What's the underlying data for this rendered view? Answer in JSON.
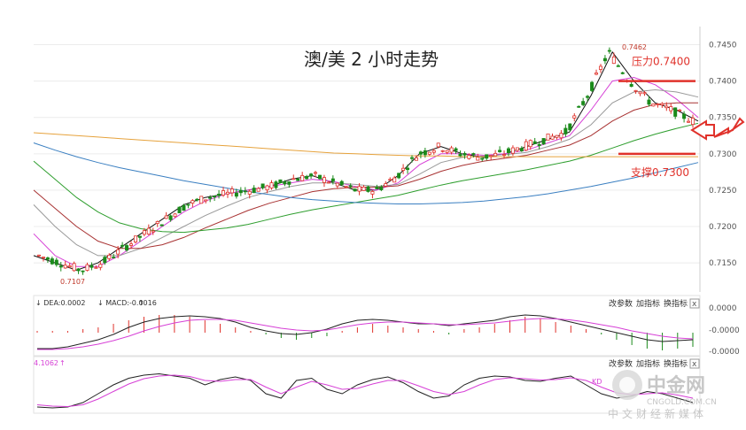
{
  "chart_data": {
    "type": "candlestick",
    "title": "澳/美 2 小时走势",
    "y_axis": {
      "range": [
        0.711,
        0.7475
      ],
      "ticks": [
        "0.7450",
        "0.7400",
        "0.7350",
        "0.7300",
        "0.7250",
        "0.7200",
        "0.7150"
      ]
    },
    "annotations": {
      "high_label": "0.7462",
      "low_label": "0.7107",
      "resistance_label": "压力0.7400",
      "support_label": "支撑0.7300",
      "resistance": 0.74,
      "support": 0.73
    },
    "ma_series": [
      {
        "color": "#111111",
        "values": [
          0.716,
          0.715,
          0.714,
          0.715,
          0.717,
          0.719,
          0.721,
          0.723,
          0.724,
          0.7245,
          0.725,
          0.7255,
          0.7265,
          0.727,
          0.726,
          0.725,
          0.725,
          0.727,
          0.73,
          0.731,
          0.73,
          0.7295,
          0.73,
          0.731,
          0.732,
          0.733,
          0.738,
          0.744,
          0.74,
          0.737,
          0.736,
          0.7345
        ]
      },
      {
        "color": "#d63fd6",
        "values": [
          0.719,
          0.716,
          0.7145,
          0.7145,
          0.716,
          0.718,
          0.72,
          0.722,
          0.7235,
          0.7245,
          0.725,
          0.7255,
          0.726,
          0.7265,
          0.7262,
          0.7255,
          0.725,
          0.726,
          0.7285,
          0.73,
          0.73,
          0.7298,
          0.73,
          0.7305,
          0.7315,
          0.7325,
          0.736,
          0.74,
          0.7405,
          0.7395,
          0.7375,
          0.735
        ]
      },
      {
        "color": "#999999",
        "values": [
          0.723,
          0.72,
          0.7175,
          0.716,
          0.716,
          0.717,
          0.7185,
          0.72,
          0.7215,
          0.7228,
          0.724,
          0.7248,
          0.7255,
          0.726,
          0.726,
          0.7258,
          0.7255,
          0.7258,
          0.7272,
          0.7288,
          0.7295,
          0.7297,
          0.7299,
          0.7302,
          0.731,
          0.732,
          0.734,
          0.737,
          0.7385,
          0.7388,
          0.7385,
          0.7378
        ]
      },
      {
        "color": "#a83232",
        "values": [
          0.725,
          0.7225,
          0.72,
          0.718,
          0.717,
          0.717,
          0.7175,
          0.7185,
          0.7198,
          0.721,
          0.7222,
          0.7232,
          0.724,
          0.7248,
          0.7252,
          0.7254,
          0.7254,
          0.7256,
          0.7265,
          0.7276,
          0.7284,
          0.729,
          0.7294,
          0.7298,
          0.7305,
          0.7312,
          0.7325,
          0.7345,
          0.736,
          0.7368,
          0.737,
          0.737
        ]
      },
      {
        "color": "#2e9e2e",
        "values": [
          0.729,
          0.7265,
          0.724,
          0.722,
          0.7205,
          0.7197,
          0.7193,
          0.7192,
          0.7195,
          0.7198,
          0.7203,
          0.721,
          0.7217,
          0.7223,
          0.7228,
          0.7233,
          0.7238,
          0.7243,
          0.725,
          0.7257,
          0.7263,
          0.7268,
          0.7273,
          0.7278,
          0.7284,
          0.729,
          0.7298,
          0.7308,
          0.7318,
          0.7327,
          0.7335,
          0.7342
        ]
      },
      {
        "color": "#3a7fc1",
        "values": [
          0.7315,
          0.7305,
          0.7296,
          0.7288,
          0.7281,
          0.7275,
          0.7269,
          0.7263,
          0.7258,
          0.7253,
          0.7248,
          0.7244,
          0.724,
          0.7237,
          0.7235,
          0.7233,
          0.7232,
          0.7231,
          0.7231,
          0.7232,
          0.7233,
          0.7235,
          0.7238,
          0.7241,
          0.7245,
          0.725,
          0.7255,
          0.7261,
          0.7267,
          0.7274,
          0.7281,
          0.7288
        ]
      },
      {
        "color": "#e6a23c",
        "values": [
          0.7329,
          0.7327,
          0.7325,
          0.7323,
          0.7321,
          0.7319,
          0.7317,
          0.7315,
          0.7313,
          0.7311,
          0.7309,
          0.7307,
          0.7305,
          0.7303,
          0.7301,
          0.73,
          0.7299,
          0.7298,
          0.7297,
          0.7297,
          0.7296,
          0.7296,
          0.7296,
          0.7296,
          0.7296,
          0.7296,
          0.7296,
          0.7296,
          0.7296,
          0.7296,
          0.7296,
          0.7296
        ]
      }
    ],
    "macd": {
      "dea_label": "↓ DEA:0.0002",
      "macd_label": "↓ MACD:-0.0016",
      "up_arrow": "↑",
      "y_ticks": [
        "0.0000",
        "-0.0000",
        "-0.0000"
      ],
      "bars": [
        0.1,
        0.1,
        0.1,
        0.2,
        0.3,
        0.5,
        0.7,
        0.9,
        1.0,
        1.0,
        0.9,
        0.7,
        0.5,
        0.3,
        0.1,
        -0.1,
        -0.3,
        -0.4,
        -0.3,
        -0.2,
        0.1,
        0.3,
        0.5,
        0.4,
        0.3,
        0.2,
        0.1,
        -0.1,
        0.2,
        0.3,
        0.5,
        0.7,
        0.9,
        0.8,
        0.6,
        0.4,
        0.2,
        -0.1,
        -0.4,
        -0.7,
        -0.9,
        -1.0,
        -0.9,
        -0.8
      ],
      "dif": [
        -0.9,
        -0.9,
        -0.8,
        -0.6,
        -0.4,
        -0.1,
        0.3,
        0.6,
        0.8,
        0.9,
        0.95,
        0.9,
        0.8,
        0.6,
        0.3,
        0.1,
        -0.05,
        -0.1,
        0.0,
        0.2,
        0.5,
        0.7,
        0.75,
        0.7,
        0.6,
        0.5,
        0.5,
        0.4,
        0.5,
        0.6,
        0.7,
        0.9,
        1.0,
        0.95,
        0.8,
        0.6,
        0.4,
        0.2,
        0.0,
        -0.2,
        -0.4,
        -0.5,
        -0.45,
        -0.4
      ],
      "dea": [
        -0.95,
        -0.95,
        -0.9,
        -0.8,
        -0.65,
        -0.45,
        -0.2,
        0.1,
        0.35,
        0.55,
        0.7,
        0.75,
        0.75,
        0.7,
        0.55,
        0.4,
        0.25,
        0.15,
        0.1,
        0.15,
        0.3,
        0.45,
        0.55,
        0.6,
        0.6,
        0.55,
        0.5,
        0.45,
        0.45,
        0.5,
        0.55,
        0.65,
        0.75,
        0.8,
        0.78,
        0.72,
        0.6,
        0.45,
        0.3,
        0.1,
        -0.05,
        -0.2,
        -0.3,
        -0.35
      ]
    },
    "kdj": {
      "label": "4.1062",
      "up_arrow": "↑",
      "right_label": "KD",
      "k": [
        10,
        8,
        10,
        20,
        40,
        60,
        75,
        82,
        85,
        80,
        75,
        60,
        72,
        78,
        70,
        40,
        30,
        70,
        75,
        50,
        40,
        60,
        72,
        78,
        65,
        45,
        30,
        35,
        60,
        75,
        80,
        78,
        70,
        68,
        75,
        80,
        60,
        40,
        30,
        35,
        45,
        40,
        30,
        20
      ],
      "d": [
        15,
        12,
        11,
        15,
        28,
        45,
        62,
        74,
        80,
        82,
        79,
        70,
        68,
        72,
        72,
        55,
        40,
        55,
        68,
        60,
        50,
        52,
        62,
        70,
        70,
        58,
        45,
        38,
        45,
        60,
        72,
        76,
        74,
        71,
        72,
        76,
        70,
        55,
        42,
        38,
        40,
        42,
        37,
        30
      ]
    },
    "panel_buttons": [
      "改参数",
      "加指标",
      "换指标"
    ],
    "close_symbol": "x",
    "watermark": {
      "name": "中金网",
      "url": "CNGOLD.COM.CN",
      "tagline": "中文财经新媒体"
    },
    "colors": {
      "up": "#e0322b",
      "down": "#1a8a1a",
      "resistance_line": "#e0322b",
      "support_line": "#e0322b",
      "arrow": "#e0322b"
    }
  }
}
